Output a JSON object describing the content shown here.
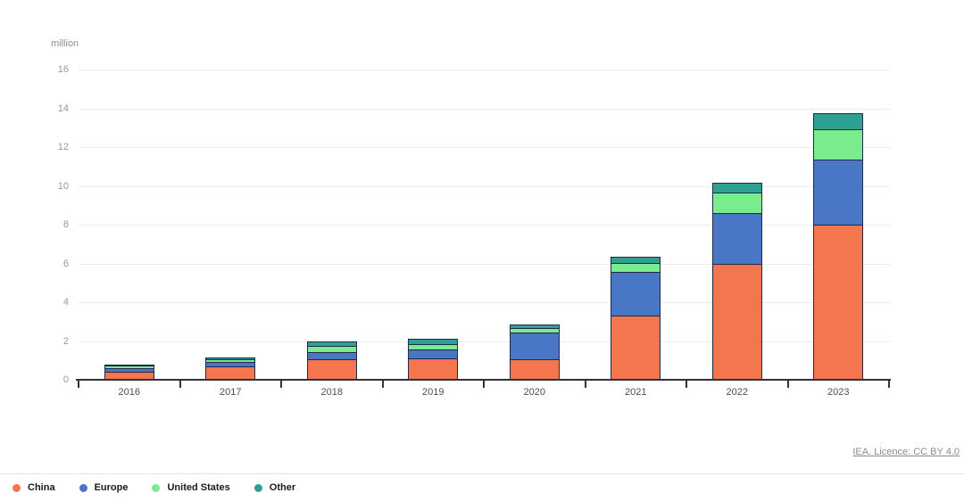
{
  "chart": {
    "unit_label": "million",
    "license_text": "IEA. Licence: CC BY 4.0"
  },
  "chart_data": {
    "type": "bar",
    "stacked": true,
    "title": "",
    "xlabel": "",
    "ylabel": "million",
    "categories": [
      "2016",
      "2017",
      "2018",
      "2019",
      "2020",
      "2021",
      "2022",
      "2023"
    ],
    "series": [
      {
        "name": "China",
        "color": "#f4764f",
        "values": [
          0.4,
          0.7,
          1.05,
          1.1,
          1.05,
          3.3,
          6.0,
          8.0
        ]
      },
      {
        "name": "Europe",
        "color": "#4a76c6",
        "values": [
          0.25,
          0.28,
          0.4,
          0.5,
          1.45,
          2.3,
          2.65,
          3.4
        ]
      },
      {
        "name": "United States",
        "color": "#7aec8d",
        "values": [
          0.2,
          0.18,
          0.37,
          0.35,
          0.25,
          0.5,
          1.1,
          1.6
        ]
      },
      {
        "name": "Other",
        "color": "#2ea193",
        "values": [
          0.05,
          0.14,
          0.28,
          0.3,
          0.25,
          0.4,
          0.55,
          0.9
        ]
      }
    ],
    "ylim": [
      0,
      16
    ],
    "yticks": [
      0,
      2,
      4,
      6,
      8,
      10,
      12,
      14,
      16
    ],
    "grid": true,
    "legend_position": "bottom-left"
  }
}
